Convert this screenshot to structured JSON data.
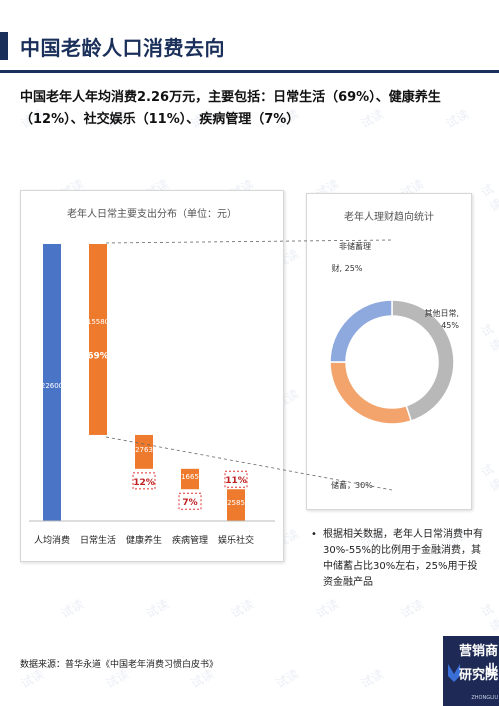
{
  "page": {
    "title": "中国老龄人口消费去向",
    "summary": "中国老年人年均消费2.26万元，主要包括：日常生活（69%）、健康养生（12%）、社交娱乐（11%）、疾病管理（7%）",
    "watermark": "试读",
    "source": "数据来源：普华永道《中国老年消费习惯白皮书》",
    "note": "根据相关数据，老年人日常消费中有30%-55%的比例用于金融消费，其中储蓄占比30%左右，25%用于投资金融产品",
    "note_bullet": "•",
    "logo": {
      "line1": "营销商业",
      "line2": "研究院",
      "mark": "功十猫",
      "sub": "ZHONGLIU"
    }
  },
  "colors": {
    "blue": "#4a74c6",
    "orange": "#ee7a2e",
    "orange_light": "#f3a46d",
    "blue_light": "#8ea9de",
    "grey": "#b8b8b8",
    "red_dash": "#e03030",
    "navy": "#1a2f5a"
  },
  "chart_data": [
    {
      "type": "bar",
      "subtype": "waterfall",
      "title": "老年人日常主要支出分布（单位：元）",
      "categories": [
        "人均消费",
        "日常生活",
        "健康养生",
        "疾病管理",
        "娱乐社交"
      ],
      "values": [
        22600,
        15580,
        2763,
        1665,
        2585
      ],
      "value_labels": [
        "22600",
        "15580",
        "2763",
        "1665",
        "2585"
      ],
      "percent_labels": [
        "",
        "69%",
        "12%",
        "7%",
        "11%"
      ],
      "ylim": [
        0,
        22600
      ]
    },
    {
      "type": "pie",
      "subtype": "donut",
      "title": "老年人理财趋向统计",
      "slices": [
        {
          "label": "其他日常",
          "value": 45,
          "display": "其他日常，45%"
        },
        {
          "label": "储蓄",
          "value": 30,
          "display": "储蓄，30%"
        },
        {
          "label": "非储蓄理财",
          "value": 25,
          "display": "非储蓄理财，25%"
        }
      ]
    }
  ]
}
